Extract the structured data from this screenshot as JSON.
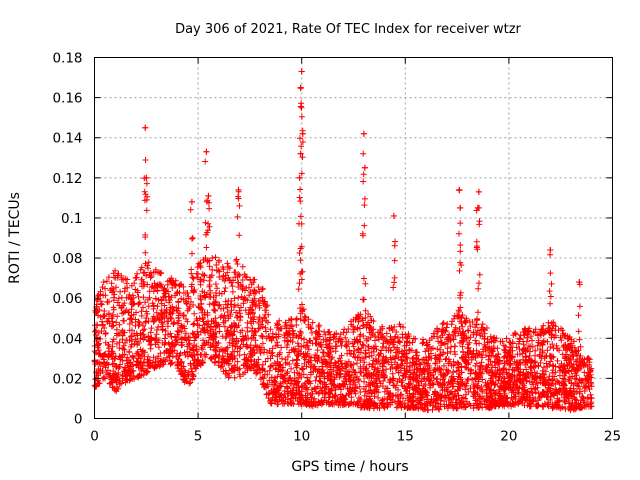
{
  "chart_data": {
    "type": "scatter",
    "title": "Day 306 of 2021, Rate Of TEC Index for receiver wtzr",
    "xlabel": "GPS time / hours",
    "ylabel": "ROTI / TECUs",
    "xlim": [
      0,
      25
    ],
    "ylim": [
      0,
      0.18
    ],
    "x_ticks": [
      0,
      5,
      10,
      15,
      20,
      25
    ],
    "x_tick_labels": [
      "0",
      "5",
      "10",
      "15",
      "20",
      "25"
    ],
    "y_ticks": [
      0,
      0.02,
      0.04,
      0.06,
      0.08,
      0.1,
      0.12,
      0.14,
      0.16,
      0.18
    ],
    "y_tick_labels": [
      "0",
      "0.02",
      "0.04",
      "0.06",
      "0.08",
      "0.1",
      "0.12",
      "0.14",
      "0.16",
      "0.18"
    ],
    "grid": true,
    "marker": "+",
    "color": "#ff0000",
    "data_time_range_hours": [
      0,
      24
    ],
    "envelope": {
      "hours": [
        0,
        0.5,
        1,
        1.5,
        2,
        2.5,
        3,
        3.5,
        4,
        4.5,
        5,
        5.5,
        6,
        6.5,
        7,
        7.5,
        8,
        8.3,
        8.5,
        9,
        9.5,
        10,
        10.5,
        11,
        11.5,
        12,
        12.5,
        13,
        13.5,
        14,
        14.5,
        15,
        15.5,
        16,
        16.5,
        17,
        17.5,
        18,
        18.5,
        19,
        19.5,
        20,
        20.5,
        21,
        21.5,
        22,
        22.5,
        23,
        23.5,
        24
      ],
      "typical_low": [
        0.015,
        0.02,
        0.013,
        0.018,
        0.02,
        0.022,
        0.025,
        0.028,
        0.025,
        0.015,
        0.025,
        0.03,
        0.025,
        0.02,
        0.02,
        0.025,
        0.02,
        0.012,
        0.007,
        0.007,
        0.007,
        0.007,
        0.006,
        0.007,
        0.007,
        0.006,
        0.006,
        0.005,
        0.005,
        0.005,
        0.005,
        0.005,
        0.005,
        0.004,
        0.004,
        0.005,
        0.005,
        0.005,
        0.005,
        0.005,
        0.006,
        0.006,
        0.006,
        0.006,
        0.006,
        0.005,
        0.005,
        0.004,
        0.005,
        0.006
      ],
      "typical_high": [
        0.06,
        0.07,
        0.075,
        0.07,
        0.072,
        0.08,
        0.075,
        0.07,
        0.07,
        0.065,
        0.08,
        0.085,
        0.08,
        0.078,
        0.08,
        0.07,
        0.07,
        0.06,
        0.045,
        0.05,
        0.05,
        0.055,
        0.05,
        0.045,
        0.045,
        0.045,
        0.05,
        0.055,
        0.05,
        0.045,
        0.05,
        0.045,
        0.04,
        0.04,
        0.045,
        0.05,
        0.055,
        0.05,
        0.05,
        0.045,
        0.04,
        0.04,
        0.045,
        0.045,
        0.045,
        0.05,
        0.045,
        0.04,
        0.035,
        0.03
      ]
    },
    "peaks": [
      {
        "x": 2.45,
        "y": 0.145
      },
      {
        "x": 2.5,
        "y": 0.12
      },
      {
        "x": 5.4,
        "y": 0.133
      },
      {
        "x": 5.5,
        "y": 0.111
      },
      {
        "x": 6.95,
        "y": 0.114
      },
      {
        "x": 4.7,
        "y": 0.108
      },
      {
        "x": 10.0,
        "y": 0.173
      },
      {
        "x": 9.95,
        "y": 0.165
      },
      {
        "x": 10.05,
        "y": 0.142
      },
      {
        "x": 9.95,
        "y": 0.132
      },
      {
        "x": 9.9,
        "y": 0.12
      },
      {
        "x": 13.0,
        "y": 0.142
      },
      {
        "x": 13.05,
        "y": 0.125
      },
      {
        "x": 17.6,
        "y": 0.114
      },
      {
        "x": 17.65,
        "y": 0.105
      },
      {
        "x": 18.55,
        "y": 0.113
      },
      {
        "x": 18.5,
        "y": 0.105
      },
      {
        "x": 14.45,
        "y": 0.101
      },
      {
        "x": 22.0,
        "y": 0.084
      },
      {
        "x": 23.4,
        "y": 0.068
      }
    ]
  }
}
